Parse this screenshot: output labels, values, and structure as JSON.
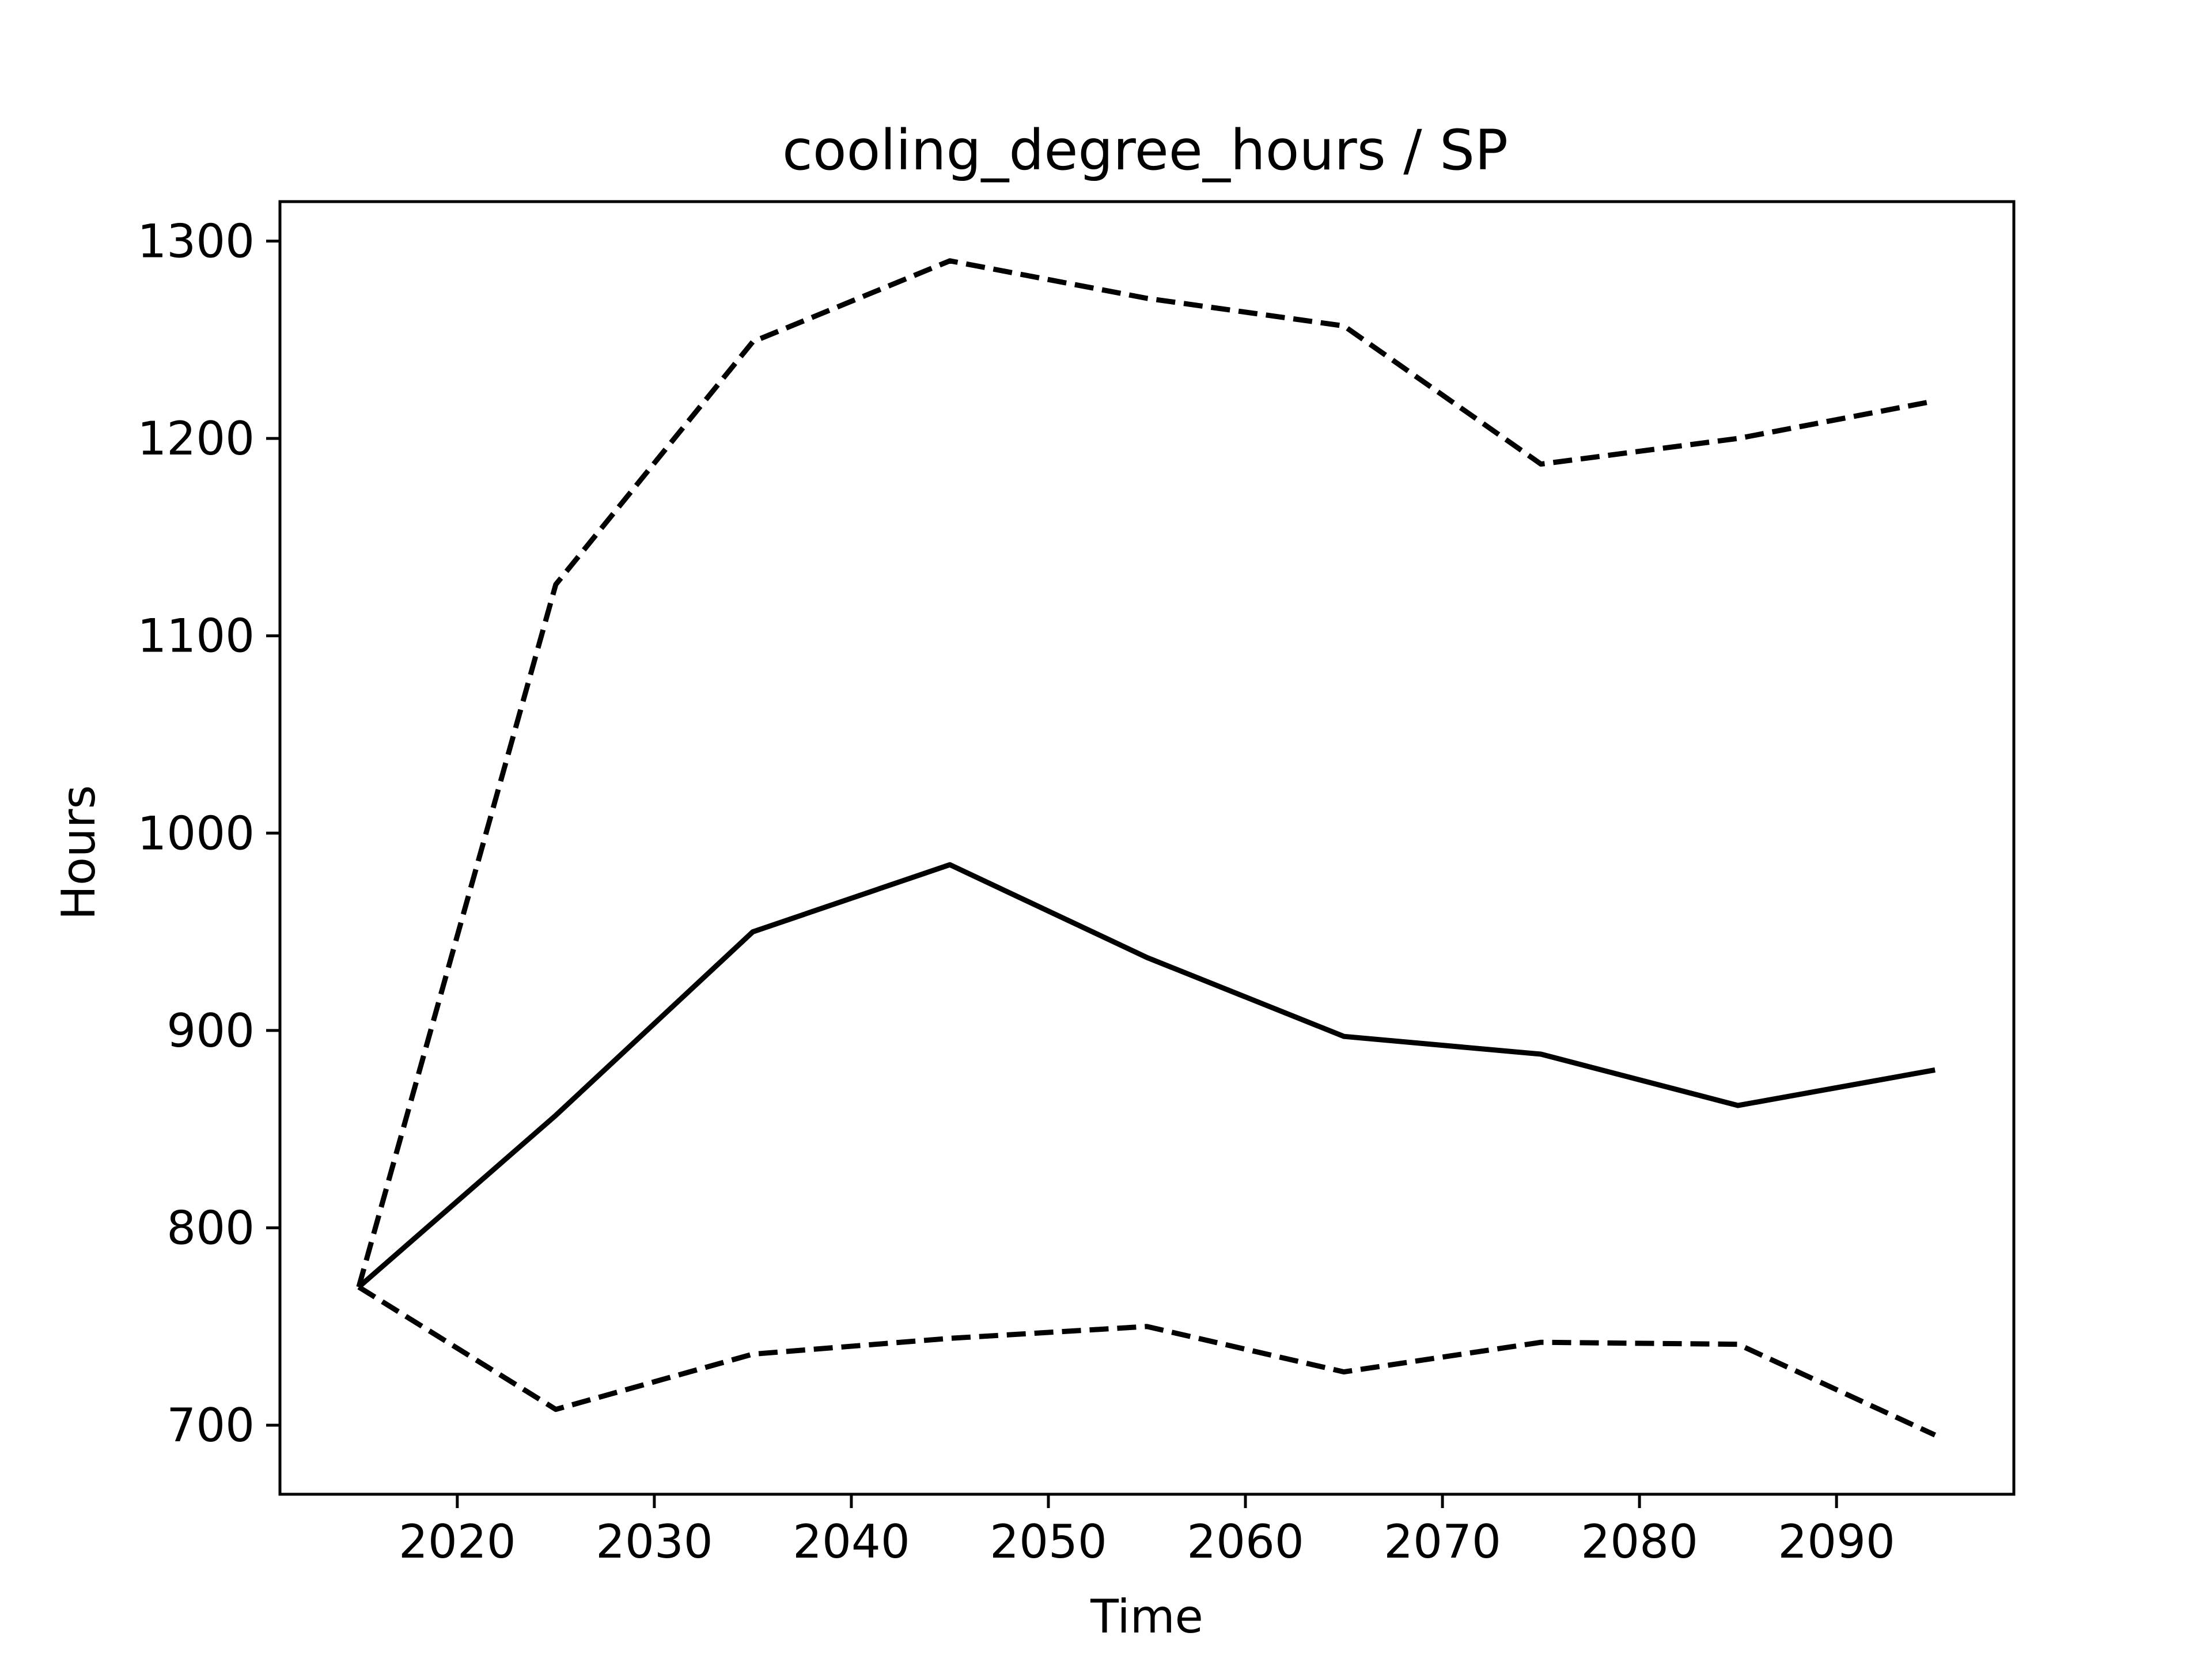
{
  "chart_data": {
    "type": "line",
    "title": "cooling_degree_hours / SP",
    "xlabel": "Time",
    "ylabel": "Hours",
    "xlim": [
      2011,
      2099
    ],
    "ylim": [
      665,
      1320
    ],
    "xticks": [
      2020,
      2030,
      2040,
      2050,
      2060,
      2070,
      2080,
      2090
    ],
    "yticks": [
      700,
      800,
      900,
      1000,
      1100,
      1200,
      1300
    ],
    "grid": false,
    "legend": "none",
    "x": [
      2015,
      2025,
      2035,
      2045,
      2055,
      2065,
      2075,
      2085,
      2095
    ],
    "series": [
      {
        "style": "dashed",
        "color": "#000000",
        "values": [
          770,
          1126,
          1249,
          1290,
          1271,
          1257,
          1187,
          1200,
          1219
        ]
      },
      {
        "style": "solid",
        "color": "#000000",
        "values": [
          770,
          857,
          950,
          984,
          937,
          897,
          888,
          862,
          880
        ]
      },
      {
        "style": "dashed",
        "color": "#000000",
        "values": [
          770,
          708,
          736,
          744,
          750,
          727,
          742,
          741,
          695
        ]
      }
    ]
  }
}
